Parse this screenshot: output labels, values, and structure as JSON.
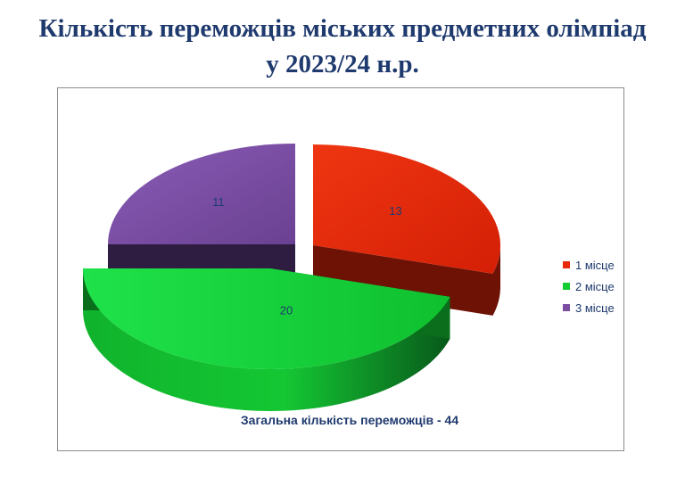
{
  "title": {
    "line1": "Кількість переможців міських  предметних олімпіад",
    "line2": "у 2023/24 н.р."
  },
  "chart_data": {
    "type": "pie",
    "title": "Кількість переможців міських  предметних олімпіад у 2023/24 н.р.",
    "categories": [
      "1 місце",
      "2 місце",
      "3 місце"
    ],
    "values": [
      13,
      20,
      11
    ],
    "value_labels": [
      "13",
      "20",
      "11"
    ],
    "colors": [
      "#e8290b",
      "#12cc33",
      "#7b4ea2"
    ],
    "side_colors": [
      "#6e1205",
      "#0a6e1c",
      "#2e1d40"
    ],
    "legend": {
      "position": "right",
      "entries": [
        "1 місце",
        "2 місце",
        "3 місце"
      ]
    },
    "annotation": "Загальна кількість переможців - 44",
    "exploded": true,
    "style": "3d"
  }
}
